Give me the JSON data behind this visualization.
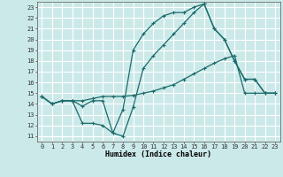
{
  "xlabel": "Humidex (Indice chaleur)",
  "bg_color": "#cce9e9",
  "grid_color": "#ffffff",
  "line_color": "#1a6b6b",
  "xlim": [
    -0.5,
    23.5
  ],
  "ylim": [
    10.5,
    23.5
  ],
  "yticks": [
    11,
    12,
    13,
    14,
    15,
    16,
    17,
    18,
    19,
    20,
    21,
    22,
    23
  ],
  "xticks": [
    0,
    1,
    2,
    3,
    4,
    5,
    6,
    7,
    8,
    9,
    10,
    11,
    12,
    13,
    14,
    15,
    16,
    17,
    18,
    19,
    20,
    21,
    22,
    23
  ],
  "line1_x": [
    0,
    1,
    2,
    3,
    4,
    5,
    6,
    7,
    8,
    9,
    10,
    11,
    12,
    13,
    14,
    15,
    16,
    17,
    18,
    19,
    20,
    21,
    22,
    23
  ],
  "line1_y": [
    14.7,
    14.0,
    14.3,
    14.3,
    13.8,
    14.3,
    14.3,
    11.3,
    13.5,
    19.0,
    20.5,
    21.5,
    22.2,
    22.5,
    22.5,
    23.0,
    23.3,
    21.0,
    20.0,
    18.0,
    16.3,
    16.3,
    15.0,
    15.0
  ],
  "line2_x": [
    0,
    1,
    2,
    3,
    4,
    5,
    6,
    7,
    8,
    9,
    10,
    11,
    12,
    13,
    14,
    15,
    16,
    17,
    18,
    19,
    20,
    21,
    22,
    23
  ],
  "line2_y": [
    14.7,
    14.0,
    14.3,
    14.3,
    12.2,
    12.2,
    12.0,
    11.3,
    11.0,
    13.7,
    17.3,
    18.5,
    19.5,
    20.5,
    21.5,
    22.5,
    23.3,
    21.0,
    20.0,
    18.0,
    16.3,
    16.3,
    15.0,
    15.0
  ],
  "line3_x": [
    0,
    1,
    2,
    3,
    4,
    5,
    6,
    7,
    8,
    9,
    10,
    11,
    12,
    13,
    14,
    15,
    16,
    17,
    18,
    19,
    20,
    21,
    22,
    23
  ],
  "line3_y": [
    14.7,
    14.0,
    14.3,
    14.3,
    14.3,
    14.5,
    14.7,
    14.7,
    14.7,
    14.8,
    15.0,
    15.2,
    15.5,
    15.8,
    16.3,
    16.8,
    17.3,
    17.8,
    18.2,
    18.5,
    15.0,
    15.0,
    15.0,
    15.0
  ]
}
